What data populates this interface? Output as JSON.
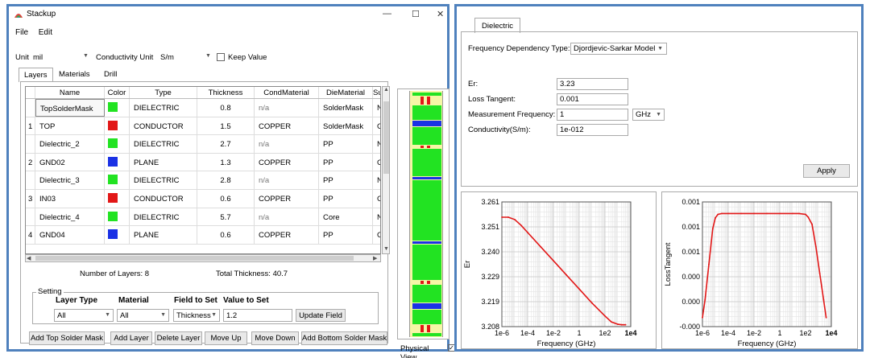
{
  "window": {
    "title": "Stackup",
    "minimize": "—",
    "maximize": "☐",
    "close": "✕"
  },
  "menu": [
    "File",
    "Edit"
  ],
  "units": {
    "unit_label": "Unit",
    "unit_value": "mil",
    "cond_label": "Conductivity Unit",
    "cond_value": "S/m",
    "keep_value_label": "Keep Value",
    "keep_value_checked": false
  },
  "tabs": [
    "Layers",
    "Materials",
    "Drill"
  ],
  "table": {
    "headers": [
      "",
      "Name",
      "Color",
      "Type",
      "Thickness",
      "CondMaterial",
      "DieMaterial",
      "Su"
    ],
    "rows": [
      {
        "num": "",
        "name": "TopSolderMask",
        "color": "#22e322",
        "type": "DIELECTRIC",
        "thickness": "0.8",
        "cond": "n/a",
        "die": "SolderMask",
        "su": "N"
      },
      {
        "num": "1",
        "name": "TOP",
        "color": "#e21717",
        "type": "CONDUCTOR",
        "thickness": "1.5",
        "cond": "COPPER",
        "die": "SolderMask",
        "su": "G"
      },
      {
        "num": "",
        "name": "Dielectric_2",
        "color": "#22e322",
        "type": "DIELECTRIC",
        "thickness": "2.7",
        "cond": "n/a",
        "die": "PP",
        "su": "N"
      },
      {
        "num": "2",
        "name": "GND02",
        "color": "#1a31e5",
        "type": "PLANE",
        "thickness": "1.3",
        "cond": "COPPER",
        "die": "PP",
        "su": "G"
      },
      {
        "num": "",
        "name": "Dielectric_3",
        "color": "#22e322",
        "type": "DIELECTRIC",
        "thickness": "2.8",
        "cond": "n/a",
        "die": "PP",
        "su": "N"
      },
      {
        "num": "3",
        "name": "IN03",
        "color": "#e21717",
        "type": "CONDUCTOR",
        "thickness": "0.6",
        "cond": "COPPER",
        "die": "PP",
        "su": "G"
      },
      {
        "num": "",
        "name": "Dielectric_4",
        "color": "#22e322",
        "type": "DIELECTRIC",
        "thickness": "5.7",
        "cond": "n/a",
        "die": "Core",
        "su": "N"
      },
      {
        "num": "4",
        "name": "GND04",
        "color": "#1a31e5",
        "type": "PLANE",
        "thickness": "0.6",
        "cond": "COPPER",
        "die": "PP",
        "su": "G"
      }
    ]
  },
  "summary": {
    "num_layers": "Number of Layers:  8",
    "total_thickness": "Total Thickness:  40.7"
  },
  "setting": {
    "title": "Setting",
    "layer_type_label": "Layer Type",
    "layer_type_value": "All",
    "material_label": "Material",
    "material_value": "All",
    "field_label": "Field to Set",
    "field_value": "Thickness",
    "value_label": "Value to Set",
    "value_value": "1.2",
    "update_button": "Update Field"
  },
  "buttons": {
    "add_top": "Add Top Solder Mask",
    "add_layer": "Add Layer",
    "delete_layer": "Delete Layer",
    "move_up": "Move Up",
    "move_down": "Move Down",
    "add_bottom": "Add Bottom Solder Mask"
  },
  "physical_view": {
    "label": "Physical View",
    "checked": true
  },
  "dielectric": {
    "tab": "Dielectric",
    "freq_type_label": "Frequency Dependency Type:",
    "freq_type_value": "Djordjevic-Sarkar Model",
    "er_label": "Er:",
    "er_value": "3.23",
    "loss_label": "Loss Tangent:",
    "loss_value": "0.001",
    "meas_label": "Measurement Frequency:",
    "meas_value": "1",
    "meas_unit": "GHz",
    "cond_label": "Conductivity(S/m):",
    "cond_value": "1e-012",
    "apply_button": "Apply"
  },
  "chart_data": [
    {
      "type": "line",
      "xlabel": "Frequency (GHz)",
      "ylabel": "Er",
      "x_ticks": [
        "1e-6",
        "1e-4",
        "1e-2",
        "1",
        "1e2",
        "1e4"
      ],
      "y_ticks": [
        "3.261",
        "3.251",
        "3.240",
        "3.229",
        "3.219",
        "3.208"
      ],
      "x_log10": [
        -6,
        -5.5,
        -5,
        -4.5,
        -4,
        -3,
        -2,
        -1,
        0,
        1,
        2,
        2.5,
        3,
        3.3,
        3.6
      ],
      "y": [
        3.2545,
        3.2545,
        3.2535,
        3.251,
        3.248,
        3.242,
        3.236,
        3.23,
        3.224,
        3.218,
        3.2125,
        3.21,
        3.209,
        3.2088,
        3.2088
      ],
      "xlim": [
        -6,
        4
      ],
      "ylim": [
        3.208,
        3.261
      ],
      "color": "#e21717"
    },
    {
      "type": "line",
      "xlabel": "Frequency (GHz)",
      "ylabel": "LossTangent",
      "x_ticks": [
        "1e-6",
        "1e-4",
        "1e-2",
        "1",
        "1e2",
        "1e4"
      ],
      "y_ticks": [
        "0.001",
        "0.001",
        "0.001",
        "0.000",
        "0.000",
        "-0.000"
      ],
      "x_log10": [
        -6,
        -5.8,
        -5.5,
        -5.2,
        -5,
        -4.8,
        -4.5,
        -4,
        -3,
        -2,
        -1,
        0,
        1,
        1.5,
        2,
        2.2,
        2.5,
        2.8,
        3.1,
        3.4,
        3.6
      ],
      "y": [
        0.0001,
        0.0003,
        0.0007,
        0.0011,
        0.00122,
        0.00126,
        0.00127,
        0.00127,
        0.00127,
        0.00127,
        0.00127,
        0.00127,
        0.00127,
        0.00127,
        0.00126,
        0.00123,
        0.00115,
        0.0009,
        0.0006,
        0.0003,
        0.0001
      ],
      "xlim": [
        -6,
        4
      ],
      "ylim": [
        0.0,
        0.0014
      ],
      "color": "#e21717"
    }
  ]
}
